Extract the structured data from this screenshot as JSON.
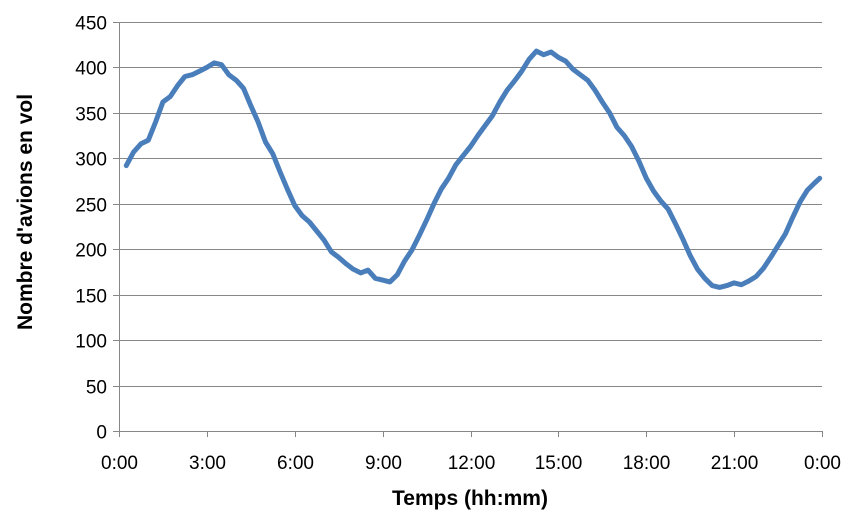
{
  "chart_data": {
    "type": "line",
    "xlabel": "Temps (hh:mm)",
    "ylabel": "Nombre d'avions en vol",
    "ylim": [
      0,
      450
    ],
    "xlim": [
      0,
      24
    ],
    "grid": true,
    "legend": "none",
    "x_ticks": [
      "0:00",
      "3:00",
      "6:00",
      "9:00",
      "12:00",
      "15:00",
      "18:00",
      "21:00",
      "0:00"
    ],
    "y_ticks": [
      "0",
      "50",
      "100",
      "150",
      "200",
      "250",
      "300",
      "350",
      "400",
      "450"
    ],
    "colors": {
      "series": "#4a7ebb",
      "grid": "#878787",
      "text": "#000000"
    },
    "series": [
      {
        "x": [
          0.25,
          0.5,
          0.75,
          1.0,
          1.25,
          1.5,
          1.75,
          2.0,
          2.25,
          2.5,
          2.75,
          3.0,
          3.25,
          3.5,
          3.75,
          4.0,
          4.25,
          4.5,
          4.75,
          5.0,
          5.25,
          5.5,
          5.75,
          6.0,
          6.25,
          6.5,
          6.75,
          7.0,
          7.25,
          7.5,
          7.75,
          8.0,
          8.25,
          8.5,
          8.75,
          9.0,
          9.25,
          9.5,
          9.75,
          10.0,
          10.25,
          10.5,
          10.75,
          11.0,
          11.25,
          11.5,
          11.75,
          12.0,
          12.25,
          12.5,
          12.75,
          13.0,
          13.25,
          13.5,
          13.75,
          14.0,
          14.25,
          14.5,
          14.75,
          15.0,
          15.25,
          15.5,
          15.75,
          16.0,
          16.25,
          16.5,
          16.75,
          17.0,
          17.25,
          17.5,
          17.75,
          18.0,
          18.25,
          18.5,
          18.75,
          19.0,
          19.25,
          19.5,
          19.75,
          20.0,
          20.25,
          20.5,
          20.75,
          21.0,
          21.25,
          21.5,
          21.75,
          22.0,
          22.25,
          22.5,
          22.75,
          23.0,
          23.25,
          23.5,
          23.75,
          23.92
        ],
        "values": [
          292,
          307,
          316,
          320,
          340,
          362,
          368,
          380,
          390,
          392,
          396,
          400,
          405,
          403,
          392,
          386,
          377,
          358,
          340,
          318,
          305,
          285,
          266,
          248,
          237,
          230,
          220,
          210,
          197,
          191,
          184,
          178,
          174,
          177,
          168,
          166,
          164,
          172,
          187,
          199,
          215,
          232,
          250,
          266,
          278,
          293,
          303,
          313,
          325,
          336,
          347,
          362,
          375,
          385,
          396,
          409,
          418,
          414,
          417,
          411,
          407,
          398,
          392,
          386,
          375,
          362,
          350,
          334,
          325,
          313,
          297,
          278,
          264,
          253,
          244,
          228,
          211,
          193,
          178,
          168,
          160,
          158,
          160,
          163,
          161,
          165,
          170,
          179,
          191,
          204,
          217,
          235,
          252,
          265,
          273,
          278
        ]
      }
    ]
  }
}
